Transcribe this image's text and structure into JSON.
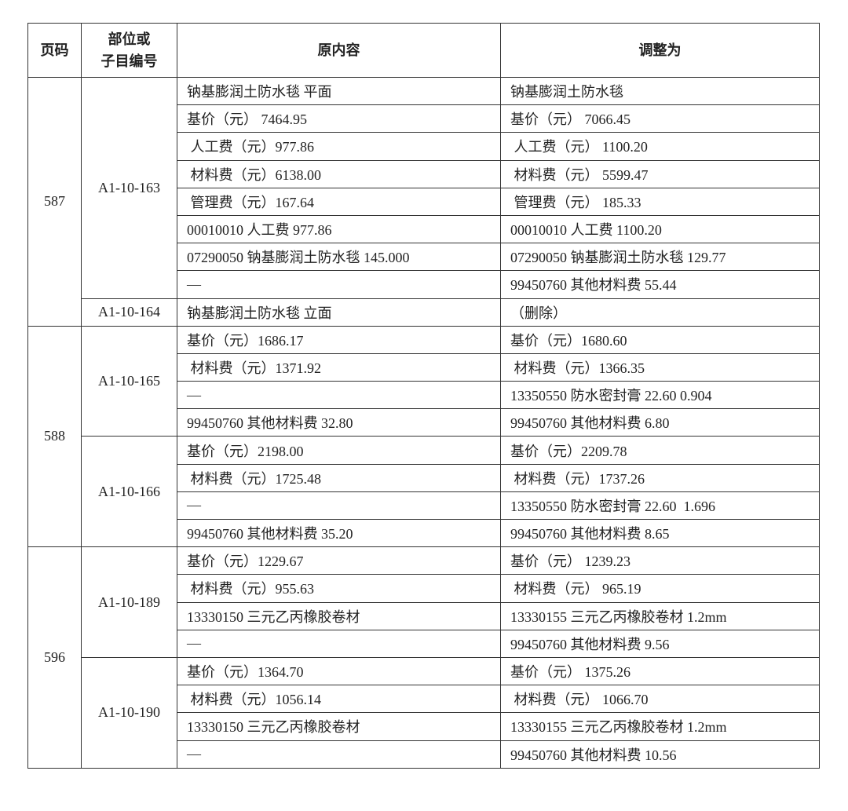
{
  "headers": {
    "page": "页码",
    "code_line1": "部位或",
    "code_line2": "子目编号",
    "original": "原内容",
    "adjusted": "调整为"
  },
  "groups": [
    {
      "page": "587",
      "items": [
        {
          "code": "A1-10-163",
          "rows": [
            {
              "original": "钠基膨润土防水毯 平面",
              "adjusted": "钠基膨润土防水毯"
            },
            {
              "original": "基价（元） 7464.95",
              "adjusted": "基价（元） 7066.45"
            },
            {
              "original": " 人工费（元）977.86",
              "adjusted": " 人工费（元） 1100.20"
            },
            {
              "original": " 材料费（元）6138.00",
              "adjusted": " 材料费（元） 5599.47"
            },
            {
              "original": " 管理费（元）167.64",
              "adjusted": " 管理费（元） 185.33"
            },
            {
              "original": "00010010 人工费 977.86",
              "adjusted": "00010010 人工费 1100.20"
            },
            {
              "original": "07290050 钠基膨润土防水毯 145.000",
              "adjusted": "07290050 钠基膨润土防水毯 129.77"
            },
            {
              "original": "—",
              "adjusted": "99450760 其他材料费 55.44"
            }
          ]
        },
        {
          "code": "A1-10-164",
          "rows": [
            {
              "original": "钠基膨润土防水毯 立面",
              "adjusted": "（删除）"
            }
          ]
        }
      ]
    },
    {
      "page": "588",
      "items": [
        {
          "code": "A1-10-165",
          "rows": [
            {
              "original": "基价（元）1686.17",
              "adjusted": "基价（元）1680.60"
            },
            {
              "original": " 材料费（元）1371.92",
              "adjusted": " 材料费（元）1366.35"
            },
            {
              "original": "—",
              "adjusted": "13350550 防水密封膏 22.60 0.904"
            },
            {
              "original": "99450760 其他材料费 32.80",
              "adjusted": "99450760 其他材料费 6.80"
            }
          ]
        },
        {
          "code": "A1-10-166",
          "rows": [
            {
              "original": "基价（元）2198.00",
              "adjusted": "基价（元）2209.78"
            },
            {
              "original": " 材料费（元）1725.48",
              "adjusted": " 材料费（元）1737.26"
            },
            {
              "original": "—",
              "adjusted": "13350550 防水密封膏 22.60  1.696"
            },
            {
              "original": "99450760 其他材料费 35.20",
              "adjusted": "99450760 其他材料费 8.65"
            }
          ]
        }
      ]
    },
    {
      "page": "596",
      "items": [
        {
          "code": "A1-10-189",
          "rows": [
            {
              "original": "基价（元）1229.67",
              "adjusted": "基价（元） 1239.23"
            },
            {
              "original": " 材料费（元）955.63",
              "adjusted": " 材料费（元） 965.19"
            },
            {
              "original": "13330150 三元乙丙橡胶卷材",
              "adjusted": "13330155 三元乙丙橡胶卷材 1.2mm"
            },
            {
              "original": "—",
              "adjusted": "99450760 其他材料费 9.56"
            }
          ]
        },
        {
          "code": "A1-10-190",
          "rows": [
            {
              "original": "基价（元）1364.70",
              "adjusted": "基价（元） 1375.26"
            },
            {
              "original": " 材料费（元）1056.14",
              "adjusted": " 材料费（元） 1066.70"
            },
            {
              "original": "13330150 三元乙丙橡胶卷材",
              "adjusted": "13330155 三元乙丙橡胶卷材 1.2mm"
            },
            {
              "original": "—",
              "adjusted": "99450760 其他材料费 10.56"
            }
          ]
        }
      ]
    }
  ]
}
